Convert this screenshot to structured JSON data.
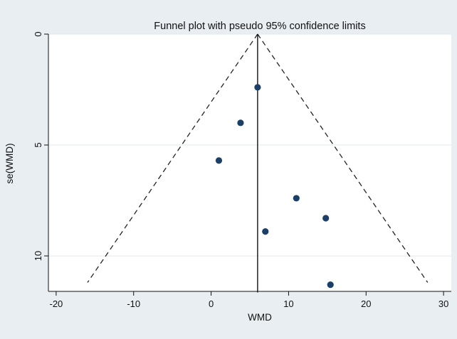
{
  "chart_data": {
    "type": "scatter",
    "title": "Funnel plot with pseudo 95% confidence limits",
    "xlabel": "WMD",
    "ylabel": "se(WMD)",
    "xlim": [
      -21,
      31
    ],
    "ylim": [
      0,
      11.6
    ],
    "y_inverted": true,
    "grid": "horizontal",
    "x_ticks": [
      -20,
      -10,
      0,
      10,
      20,
      30
    ],
    "y_ticks": [
      0,
      5,
      10
    ],
    "pooled_estimate": 6,
    "funnel_base_se": 11.2,
    "points": [
      {
        "x": 6.0,
        "y": 2.4
      },
      {
        "x": 3.8,
        "y": 4.0
      },
      {
        "x": 1.0,
        "y": 5.7
      },
      {
        "x": 11.0,
        "y": 7.4
      },
      {
        "x": 14.8,
        "y": 8.3
      },
      {
        "x": 7.0,
        "y": 8.9
      },
      {
        "x": 15.4,
        "y": 11.3
      }
    ],
    "colors": {
      "background": "#e9eef3",
      "plot_area": "#ffffff",
      "marker": "#1b3f66",
      "grid": "#e3e8ec"
    }
  }
}
